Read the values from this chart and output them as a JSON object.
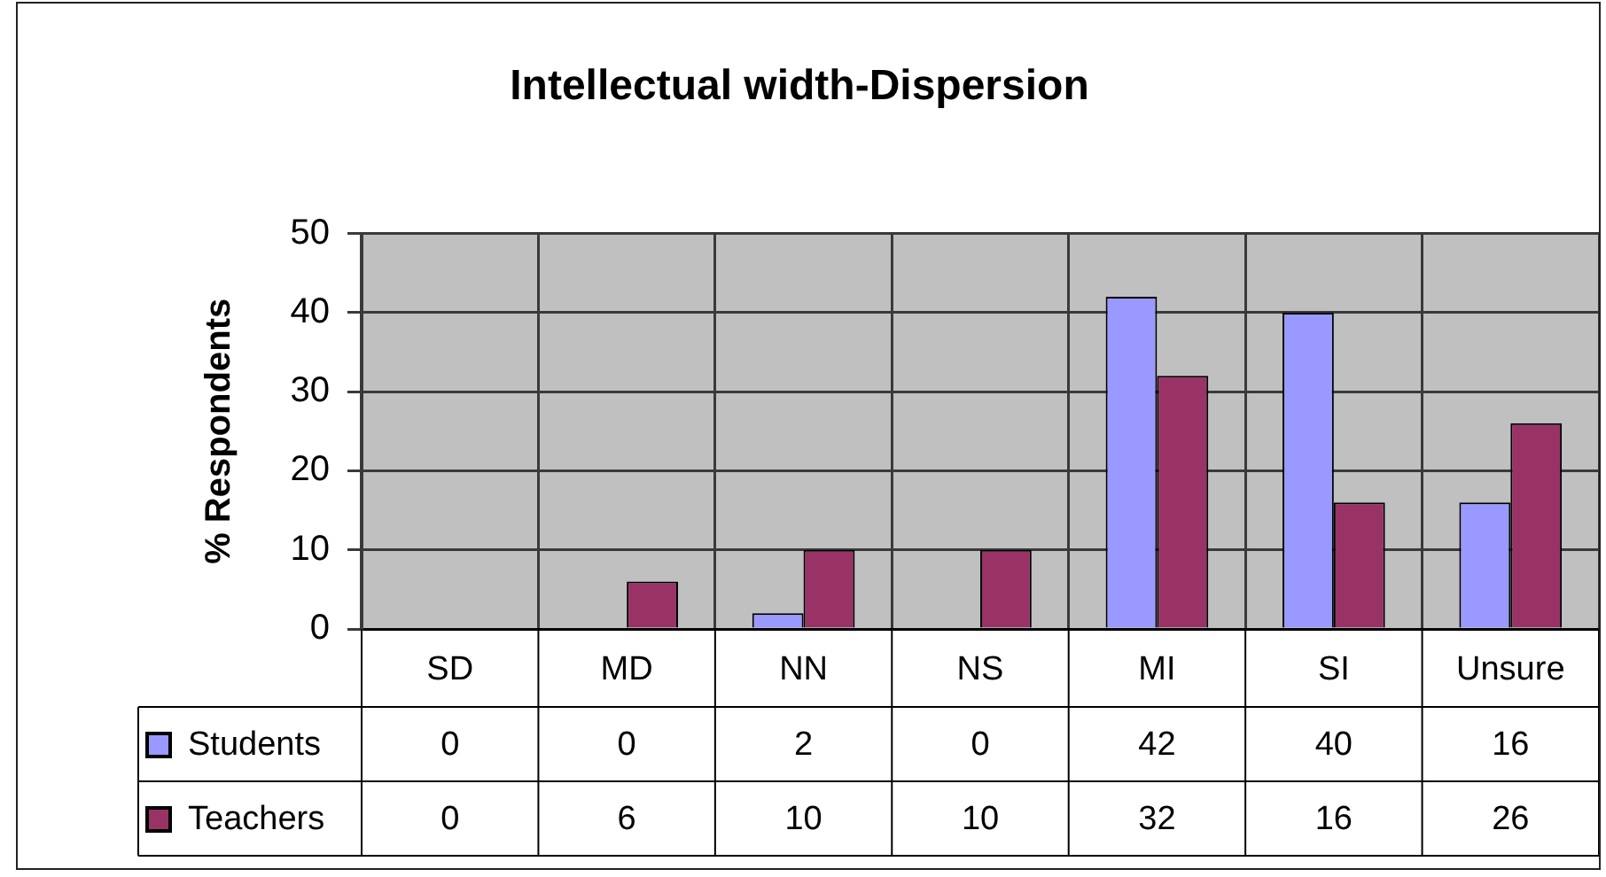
{
  "chart_data": {
    "type": "bar",
    "title": "Intellectual width-Dispersion",
    "ylabel": "% Respondents",
    "categories": [
      "SD",
      "MD",
      "NN",
      "NS",
      "MI",
      "SI",
      "Unsure"
    ],
    "series": [
      {
        "name": "Students",
        "color": "#9999ff",
        "values": [
          0,
          0,
          2,
          0,
          42,
          40,
          16
        ]
      },
      {
        "name": "Teachers",
        "color": "#993366",
        "values": [
          0,
          6,
          10,
          10,
          32,
          16,
          26
        ]
      }
    ],
    "ylim": [
      0,
      50
    ],
    "yticks": [
      0,
      10,
      20,
      30,
      40,
      50
    ],
    "grid": true,
    "legend": "bottom left",
    "data_labels": true
  }
}
